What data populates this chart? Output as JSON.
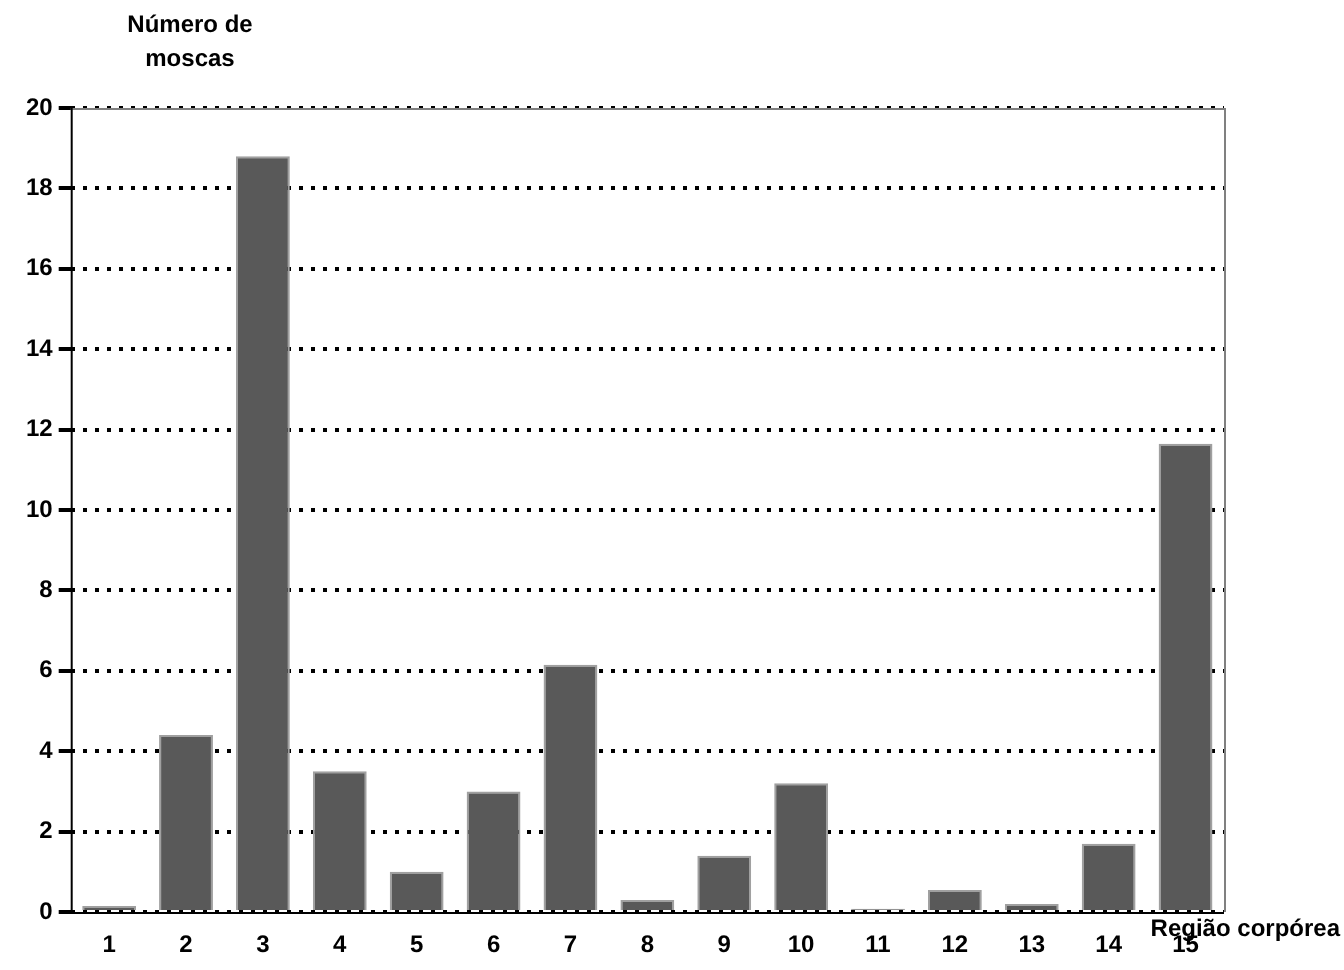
{
  "chart_data": {
    "type": "bar",
    "xlabel": "Região corpórea",
    "ylabel": "Número de moscas",
    "categories": [
      "1",
      "2",
      "3",
      "4",
      "5",
      "6",
      "7",
      "8",
      "9",
      "10",
      "11",
      "12",
      "13",
      "14",
      "15"
    ],
    "values": [
      0.15,
      4.4,
      18.8,
      3.5,
      1.0,
      3.0,
      6.15,
      0.3,
      1.4,
      3.2,
      0.08,
      0.55,
      0.2,
      1.7,
      11.65
    ],
    "color": "#595959",
    "ylim": [
      0,
      20
    ],
    "yticks": [
      0,
      2,
      4,
      6,
      8,
      10,
      12,
      14,
      16,
      18,
      20
    ],
    "grid": "y"
  }
}
